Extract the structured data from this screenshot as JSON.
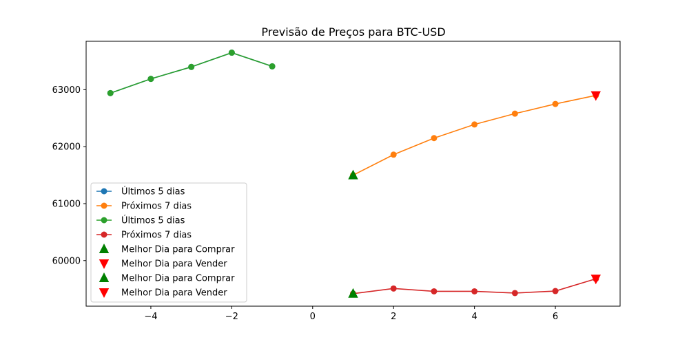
{
  "chart_data": {
    "type": "line",
    "title": "Previsão de Preços para BTC-USD",
    "xlabel": "",
    "ylabel": "",
    "xlim": [
      -5.6,
      7.6
    ],
    "ylim": [
      59200,
      63850
    ],
    "x_ticks": [
      -4,
      -2,
      0,
      2,
      4,
      6
    ],
    "x_tick_labels": [
      "−4",
      "−2",
      "0",
      "2",
      "4",
      "6"
    ],
    "y_ticks": [
      60000,
      61000,
      62000,
      63000
    ],
    "y_tick_labels": [
      "60000",
      "61000",
      "62000",
      "63000"
    ],
    "grid": false,
    "legend_position": "lower-left",
    "series": [
      {
        "name": "Últimos 5 dias",
        "kind": "line",
        "color": "#1f77b4",
        "x": [
          -5,
          -4,
          -3,
          -2,
          -1
        ],
        "y": [
          62940,
          63190,
          63400,
          63650,
          63410
        ]
      },
      {
        "name": "Próximos 7 dias",
        "kind": "line",
        "color": "#ff7f0e",
        "x": [
          1,
          2,
          3,
          4,
          5,
          6,
          7
        ],
        "y": [
          61500,
          61860,
          62150,
          62390,
          62580,
          62750,
          62900
        ]
      },
      {
        "name": "Últimos 5 dias",
        "kind": "line",
        "color": "#2ca02c",
        "x": [
          -5,
          -4,
          -3,
          -2,
          -1
        ],
        "y": [
          62940,
          63190,
          63400,
          63650,
          63410
        ]
      },
      {
        "name": "Próximos 7 dias",
        "kind": "line",
        "color": "#d62728",
        "x": [
          1,
          2,
          3,
          4,
          5,
          6,
          7
        ],
        "y": [
          59420,
          59510,
          59460,
          59460,
          59430,
          59465,
          59680
        ]
      },
      {
        "name": "Melhor Dia para Comprar",
        "kind": "marker-up",
        "color": "#008000",
        "x": [
          1
        ],
        "y": [
          61500
        ]
      },
      {
        "name": "Melhor Dia para Vender",
        "kind": "marker-down",
        "color": "#ff0000",
        "x": [
          7
        ],
        "y": [
          62900
        ]
      },
      {
        "name": "Melhor Dia para Comprar",
        "kind": "marker-up",
        "color": "#008000",
        "x": [
          1
        ],
        "y": [
          59420
        ]
      },
      {
        "name": "Melhor Dia para Vender",
        "kind": "marker-down",
        "color": "#ff0000",
        "x": [
          7
        ],
        "y": [
          59680
        ]
      }
    ]
  }
}
